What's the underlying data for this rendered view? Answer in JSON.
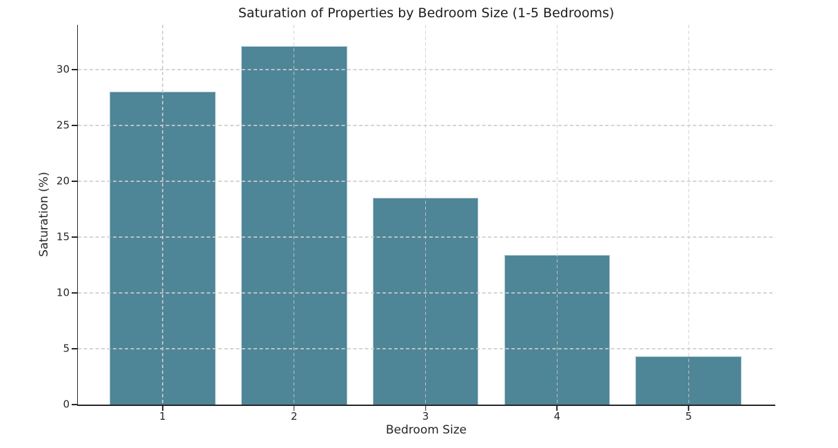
{
  "page": {
    "background_color": "#ffffff"
  },
  "chart_data": {
    "type": "bar",
    "title": "Saturation of Properties by Bedroom Size (1-5 Bedrooms)",
    "xlabel": "Bedroom Size",
    "ylabel": "Saturation (%)",
    "categories": [
      "1",
      "2",
      "3",
      "4",
      "5"
    ],
    "values": [
      28.0,
      32.1,
      18.5,
      13.4,
      4.3
    ],
    "yticks": [
      0,
      5,
      10,
      15,
      20,
      25,
      30
    ],
    "ylim": [
      0,
      34
    ],
    "grid": true,
    "grid_style": "dashed",
    "grid_above_bars": true,
    "legend": "none",
    "colors": {
      "bar_fill": "#4e8597",
      "bar_edge": "#a6c5d0",
      "grid_line": "#cdcdcd",
      "axis_line": "#262626",
      "text": "#262626"
    }
  }
}
